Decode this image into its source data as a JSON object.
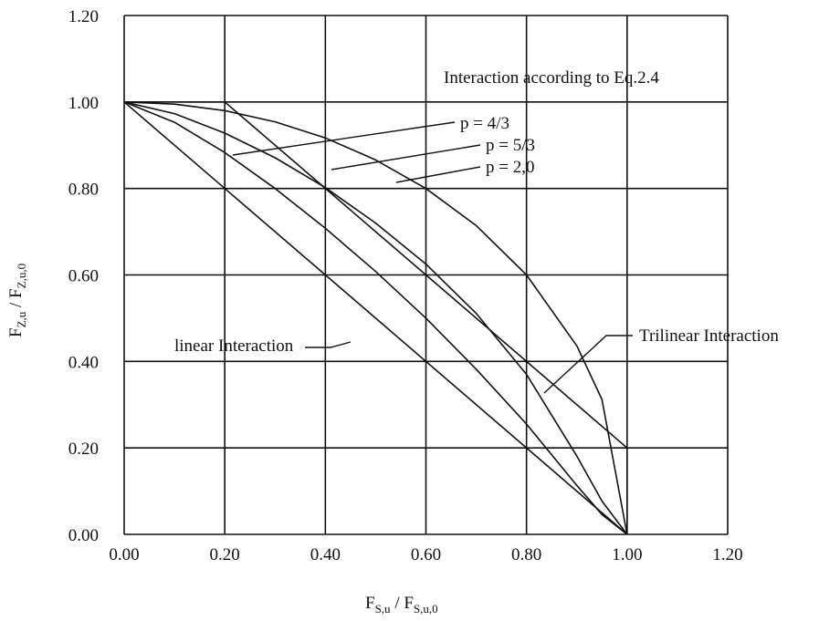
{
  "chart_data": {
    "type": "line",
    "xlabel": {
      "main": "F",
      "sub": "S,u",
      "sep": " / ",
      "main2": "F",
      "sub2": "S,u,0"
    },
    "ylabel": {
      "main": "F",
      "sub": "Z,u",
      "sep": " / ",
      "main2": "F",
      "sub2": "Z,u,0"
    },
    "xlim": [
      0,
      1.2
    ],
    "ylim": [
      0,
      1.2
    ],
    "xticks": [
      "0.00",
      "0.20",
      "0.40",
      "0.60",
      "0.80",
      "1.00",
      "1.20"
    ],
    "yticks": [
      "0.00",
      "0.20",
      "0.40",
      "0.60",
      "0.80",
      "1.00",
      "1.20"
    ],
    "grid": true,
    "colors": {
      "line": "#111111",
      "grid": "#111111"
    },
    "series": [
      {
        "name": "linear Interaction",
        "x": [
          0,
          1
        ],
        "y": [
          1,
          0
        ]
      },
      {
        "name": "Trilinear Interaction",
        "x": [
          0,
          0.2,
          1,
          1
        ],
        "y": [
          1,
          1,
          0.2,
          0
        ]
      },
      {
        "name": "p = 4/3",
        "exponent": 1.3333,
        "x": [
          0,
          0.1,
          0.2,
          0.3,
          0.4,
          0.5,
          0.6,
          0.7,
          0.8,
          0.9,
          0.95,
          1.0
        ],
        "y": [
          1,
          0.953,
          0.883,
          0.8,
          0.708,
          0.608,
          0.5,
          0.382,
          0.255,
          0.113,
          0.046,
          0
        ]
      },
      {
        "name": "p = 5/3",
        "exponent": 1.6667,
        "x": [
          0,
          0.1,
          0.2,
          0.3,
          0.4,
          0.5,
          0.6,
          0.7,
          0.8,
          0.9,
          0.95,
          1.0
        ],
        "y": [
          1,
          0.973,
          0.928,
          0.871,
          0.802,
          0.72,
          0.625,
          0.511,
          0.37,
          0.181,
          0.077,
          0
        ]
      },
      {
        "name": "p = 2,0",
        "exponent": 2.0,
        "x": [
          0,
          0.1,
          0.2,
          0.3,
          0.4,
          0.5,
          0.6,
          0.7,
          0.8,
          0.9,
          0.95,
          1.0
        ],
        "y": [
          1,
          0.995,
          0.98,
          0.954,
          0.917,
          0.866,
          0.8,
          0.714,
          0.6,
          0.436,
          0.312,
          0
        ]
      }
    ],
    "annotations": {
      "title": "Interaction according to Eq.2.4",
      "p1": "p = 4/3",
      "p2": "p = 5/3",
      "p3": "p = 2,0",
      "linear": "linear Interaction",
      "trilinear": "Trilinear Interaction"
    }
  }
}
